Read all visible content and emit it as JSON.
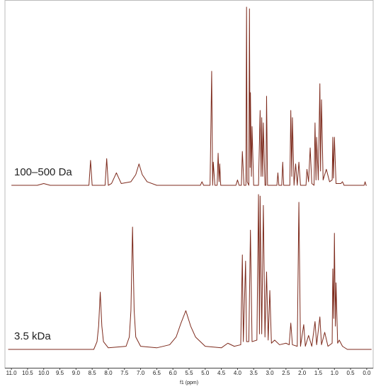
{
  "chart_data": [
    {
      "type": "line",
      "xlim": [
        11.2,
        -0.2
      ],
      "ylim": [
        0,
        100
      ],
      "x": [
        11.0,
        10.2,
        10.0,
        9.8,
        8.6,
        8.55,
        8.5,
        8.1,
        8.05,
        8.0,
        7.9,
        7.8,
        7.75,
        7.7,
        7.6,
        7.3,
        7.15,
        7.05,
        6.95,
        6.8,
        6.5,
        5.15,
        5.1,
        5.05,
        4.85,
        4.8,
        4.77,
        4.75,
        4.7,
        4.63,
        4.6,
        4.57,
        4.55,
        4.52,
        4.05,
        4.0,
        3.95,
        3.88,
        3.85,
        3.8,
        3.74,
        3.72,
        3.7,
        3.65,
        3.63,
        3.61,
        3.6,
        3.57,
        3.55,
        3.5,
        3.35,
        3.3,
        3.27,
        3.25,
        3.22,
        3.2,
        3.15,
        3.12,
        3.1,
        3.07,
        2.78,
        2.75,
        2.72,
        2.63,
        2.6,
        2.57,
        2.38,
        2.35,
        2.32,
        2.3,
        2.25,
        2.2,
        2.15,
        2.1,
        2.05,
        1.88,
        1.85,
        1.8,
        1.75,
        1.7,
        1.63,
        1.6,
        1.57,
        1.55,
        1.5,
        1.45,
        1.43,
        1.4,
        1.35,
        1.25,
        1.15,
        1.07,
        1.05,
        1.03,
        1.0,
        0.95,
        0.8,
        0.75,
        0.7,
        0.08,
        0.05,
        0.02,
        0.0
      ],
      "series": [
        {
          "name": "100–500 Da",
          "color": "#7d2a1c",
          "values": [
            0,
            0,
            1,
            0,
            0,
            14,
            0,
            0,
            15,
            0,
            1,
            5,
            7,
            5,
            1,
            2,
            6,
            12,
            6,
            2,
            0,
            0,
            2,
            0,
            0,
            64,
            0,
            13,
            0,
            0,
            18,
            2,
            12,
            0,
            0,
            3,
            0,
            0,
            19,
            0,
            0,
            100,
            2,
            0,
            99,
            10,
            52,
            5,
            33,
            0,
            0,
            42,
            5,
            38,
            5,
            35,
            0,
            0,
            50,
            0,
            0,
            7,
            0,
            0,
            13,
            0,
            0,
            42,
            5,
            38,
            0,
            12,
            0,
            13,
            0,
            0,
            9,
            2,
            21,
            1,
            0,
            35,
            3,
            27,
            3,
            57,
            8,
            48,
            3,
            9,
            2,
            3,
            27,
            4,
            27,
            1,
            1,
            2,
            0,
            0,
            2,
            0,
            0
          ]
        }
      ]
    },
    {
      "type": "line",
      "xlim": [
        11.2,
        -0.2
      ],
      "ylim": [
        0,
        100
      ],
      "xlabel": "f1 (ppm)",
      "xticks": [
        {
          "value": 11,
          "label": "11.0"
        },
        10.5,
        {
          "value": 10,
          "label": "10.0"
        },
        9.5,
        {
          "value": 9,
          "label": "9.0"
        },
        8.5,
        {
          "value": 8,
          "label": "8.0"
        },
        7.5,
        {
          "value": 7,
          "label": "7.0"
        },
        6.5,
        {
          "value": 6,
          "label": "6.0"
        },
        5.5,
        {
          "value": 5,
          "label": "5.0"
        },
        4.5,
        {
          "value": 4,
          "label": "4.0"
        },
        3.5,
        {
          "value": 3,
          "label": "3.0"
        },
        2.5,
        {
          "value": 2,
          "label": "2.0"
        },
        1.5,
        {
          "value": 1,
          "label": "1.0"
        },
        0.5,
        {
          "value": 0,
          "label": "0.0"
        }
      ],
      "x": [
        11.1,
        8.45,
        8.35,
        8.3,
        8.25,
        8.2,
        8.15,
        8.0,
        7.45,
        7.35,
        7.3,
        7.25,
        7.2,
        7.15,
        7.0,
        6.5,
        6.1,
        5.9,
        5.75,
        5.6,
        5.45,
        5.3,
        5.2,
        5.0,
        4.5,
        4.3,
        4.1,
        3.9,
        3.85,
        3.82,
        3.75,
        3.72,
        3.65,
        3.6,
        3.55,
        3.4,
        3.35,
        3.32,
        3.3,
        3.25,
        3.2,
        3.15,
        3.1,
        3.05,
        3.0,
        2.95,
        2.85,
        2.7,
        2.5,
        2.4,
        2.35,
        2.3,
        2.15,
        2.1,
        2.05,
        1.95,
        1.9,
        1.8,
        1.7,
        1.6,
        1.55,
        1.45,
        1.4,
        1.3,
        1.2,
        1.07,
        1.05,
        1.02,
        1.0,
        0.97,
        0.95,
        0.9,
        0.85,
        0.75,
        0.6,
        -0.15
      ],
      "series": [
        {
          "name": "3.5 kDa",
          "color": "#7d2a1c",
          "values": [
            0,
            0,
            5,
            15,
            37,
            15,
            5,
            1,
            2,
            8,
            25,
            79,
            25,
            8,
            2,
            1,
            3,
            8,
            17,
            25,
            15,
            8,
            6,
            2,
            1,
            4,
            2,
            3,
            61,
            5,
            57,
            5,
            5,
            77,
            5,
            6,
            100,
            10,
            99,
            10,
            93,
            8,
            50,
            6,
            38,
            4,
            6,
            3,
            4,
            3,
            17,
            3,
            2,
            95,
            2,
            16,
            2,
            9,
            2,
            18,
            3,
            21,
            3,
            11,
            2,
            4,
            52,
            20,
            75,
            15,
            43,
            4,
            6,
            2,
            0,
            0
          ]
        }
      ]
    }
  ]
}
